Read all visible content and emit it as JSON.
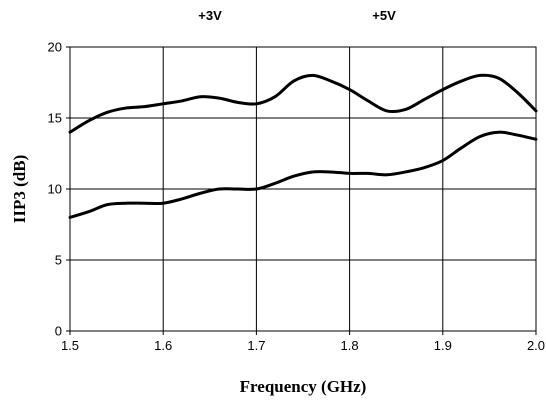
{
  "chart_data": {
    "type": "line",
    "title": "",
    "xlabel": "Frequency (GHz)",
    "ylabel": "IIP3 (dB)",
    "xlim": [
      1.5,
      2.0
    ],
    "ylim": [
      0,
      20
    ],
    "xticks": [
      "1.5",
      "1.6",
      "1.7",
      "1.8",
      "1.9",
      "2.0"
    ],
    "yticks": [
      "0",
      "5",
      "10",
      "15",
      "20"
    ],
    "grid": true,
    "annotations": [
      "+3V",
      "+5V"
    ],
    "series": [
      {
        "x": [
          1.5,
          1.52,
          1.54,
          1.56,
          1.58,
          1.6,
          1.62,
          1.64,
          1.66,
          1.68,
          1.7,
          1.72,
          1.74,
          1.76,
          1.78,
          1.8,
          1.82,
          1.84,
          1.86,
          1.88,
          1.9,
          1.92,
          1.94,
          1.96,
          1.98,
          2.0
        ],
        "values": [
          14.0,
          14.8,
          15.4,
          15.7,
          15.8,
          16.0,
          16.2,
          16.5,
          16.4,
          16.1,
          16.0,
          16.5,
          17.6,
          18.0,
          17.6,
          17.0,
          16.2,
          15.5,
          15.6,
          16.3,
          17.0,
          17.6,
          18.0,
          17.8,
          16.8,
          15.5
        ]
      },
      {
        "x": [
          1.5,
          1.52,
          1.54,
          1.56,
          1.58,
          1.6,
          1.62,
          1.64,
          1.66,
          1.68,
          1.7,
          1.72,
          1.74,
          1.76,
          1.78,
          1.8,
          1.82,
          1.84,
          1.86,
          1.88,
          1.9,
          1.92,
          1.94,
          1.96,
          1.98,
          2.0
        ],
        "values": [
          8.0,
          8.4,
          8.9,
          9.0,
          9.0,
          9.0,
          9.3,
          9.7,
          10.0,
          10.0,
          10.0,
          10.4,
          10.9,
          11.2,
          11.2,
          11.1,
          11.1,
          11.0,
          11.2,
          11.5,
          12.0,
          12.9,
          13.7,
          14.0,
          13.8,
          13.5
        ]
      }
    ]
  }
}
